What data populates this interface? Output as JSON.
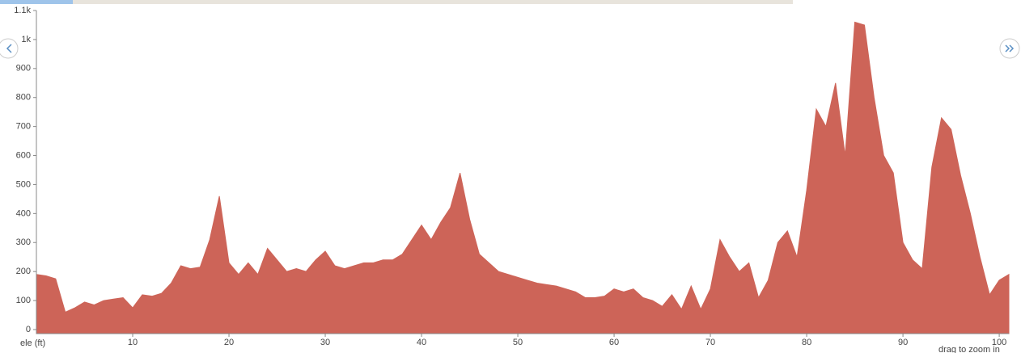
{
  "chart_data": {
    "type": "area",
    "y_label": "ele (ft)",
    "hint": "drag to zoom in",
    "color": "#cd6458",
    "x": [
      0,
      1,
      2,
      3,
      4,
      5,
      6,
      7,
      8,
      9,
      10,
      11,
      12,
      13,
      14,
      15,
      16,
      17,
      18,
      19,
      20,
      21,
      22,
      23,
      24,
      25,
      26,
      27,
      28,
      29,
      30,
      31,
      32,
      33,
      34,
      35,
      36,
      37,
      38,
      39,
      40,
      41,
      42,
      43,
      44,
      45,
      46,
      47,
      48,
      49,
      50,
      51,
      52,
      53,
      54,
      55,
      56,
      57,
      58,
      59,
      60,
      61,
      62,
      63,
      64,
      65,
      66,
      67,
      68,
      69,
      70,
      71,
      72,
      73,
      74,
      75,
      76,
      77,
      78,
      79,
      80,
      81,
      82,
      83,
      84,
      85,
      86,
      87,
      88,
      89,
      90,
      91,
      92,
      93,
      94,
      95,
      96,
      97,
      98,
      99,
      100,
      101
    ],
    "values": [
      190,
      185,
      175,
      60,
      75,
      95,
      85,
      100,
      105,
      110,
      75,
      120,
      115,
      125,
      160,
      220,
      210,
      215,
      310,
      460,
      230,
      190,
      230,
      190,
      280,
      240,
      200,
      210,
      200,
      240,
      270,
      220,
      210,
      220,
      230,
      230,
      240,
      240,
      260,
      310,
      360,
      310,
      370,
      420,
      540,
      380,
      260,
      230,
      200,
      190,
      180,
      170,
      160,
      155,
      150,
      140,
      130,
      110,
      110,
      115,
      140,
      130,
      140,
      110,
      100,
      80,
      120,
      70,
      150,
      70,
      140,
      310,
      250,
      200,
      230,
      110,
      170,
      300,
      340,
      250,
      480,
      760,
      700,
      850,
      600,
      1060,
      1050,
      800,
      600,
      540,
      300,
      240,
      210,
      560,
      730,
      690,
      530,
      400,
      250,
      120,
      170,
      190
    ],
    "xlim": [
      0,
      101
    ],
    "xticks": [
      10,
      20,
      30,
      40,
      50,
      60,
      70,
      80,
      90,
      100
    ],
    "ylim": [
      -14,
      1100
    ],
    "yticks": [
      0,
      100,
      200,
      300,
      400,
      500,
      600,
      700,
      800,
      900,
      {
        "value": 1000,
        "label": "1k"
      },
      {
        "value": 1100,
        "label": "1.1k"
      }
    ]
  }
}
